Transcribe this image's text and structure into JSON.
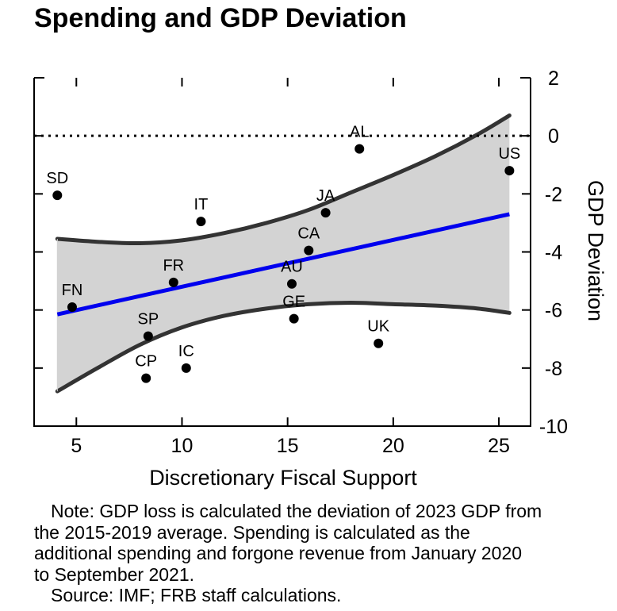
{
  "chart_data": {
    "type": "scatter",
    "title": "Spending and GDP Deviation",
    "xlabel": "Discretionary Fiscal Support",
    "ylabel": "GDP Deviation",
    "xlim": [
      3,
      26.5
    ],
    "ylim": [
      -10,
      2
    ],
    "x_ticks": [
      5,
      10,
      15,
      20,
      25
    ],
    "y_ticks": [
      2,
      0,
      -2,
      -4,
      -6,
      -8,
      -10
    ],
    "reference_line_y": 0,
    "points": [
      {
        "label": "SD",
        "x": 4.1,
        "y": -2.05
      },
      {
        "label": "FN",
        "x": 4.8,
        "y": -5.9
      },
      {
        "label": "IT",
        "x": 10.9,
        "y": -2.95
      },
      {
        "label": "FR",
        "x": 9.6,
        "y": -5.05
      },
      {
        "label": "SP",
        "x": 8.4,
        "y": -6.9
      },
      {
        "label": "CP",
        "x": 8.3,
        "y": -8.35
      },
      {
        "label": "IC",
        "x": 10.2,
        "y": -8.0
      },
      {
        "label": "AL",
        "x": 18.4,
        "y": -0.45
      },
      {
        "label": "JA",
        "x": 16.8,
        "y": -2.65
      },
      {
        "label": "CA",
        "x": 16.0,
        "y": -3.95
      },
      {
        "label": "AU",
        "x": 15.2,
        "y": -5.1
      },
      {
        "label": "GE",
        "x": 15.3,
        "y": -6.3
      },
      {
        "label": "UK",
        "x": 19.3,
        "y": -7.15
      },
      {
        "label": "US",
        "x": 25.5,
        "y": -1.2
      }
    ],
    "fit_line": {
      "x": [
        4.1,
        25.5
      ],
      "y": [
        -6.15,
        -2.7
      ]
    },
    "confidence_band": {
      "x": [
        4.1,
        6,
        8,
        10,
        12,
        14,
        16,
        18,
        20,
        22,
        24,
        25.5
      ],
      "upper": [
        -3.55,
        -3.65,
        -3.7,
        -3.6,
        -3.35,
        -3.0,
        -2.55,
        -1.95,
        -1.35,
        -0.7,
        0.05,
        0.7
      ],
      "lower": [
        -8.8,
        -8.0,
        -7.2,
        -6.6,
        -6.2,
        -5.95,
        -5.8,
        -5.75,
        -5.8,
        -5.85,
        -5.95,
        -6.1
      ]
    }
  },
  "note": {
    "lines": [
      "Note: GDP loss is calculated the deviation of 2023 GDP from",
      "the 2015-2019 average. Spending is calculated as the",
      "additional spending and forgone revenue from January 2020",
      "to September 2021."
    ],
    "source": "Source: IMF; FRB staff calculations."
  }
}
